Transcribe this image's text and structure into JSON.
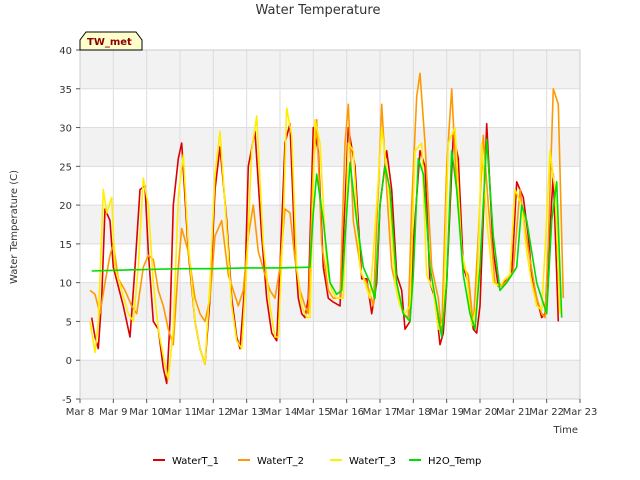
{
  "chart_data": {
    "type": "line",
    "title": "Water Temperature",
    "xlabel": "Time",
    "ylabel": "Water Temperature (C)",
    "tag": "TW_met",
    "ylim": [
      -5,
      40
    ],
    "xlim": [
      8,
      23
    ],
    "y_ticks": [
      -5,
      0,
      5,
      10,
      15,
      20,
      25,
      30,
      35,
      40
    ],
    "x_ticks": [
      {
        "v": 8,
        "label": "Mar 8"
      },
      {
        "v": 9,
        "label": "Mar 9"
      },
      {
        "v": 10,
        "label": "Mar 10"
      },
      {
        "v": 11,
        "label": "Mar 11"
      },
      {
        "v": 12,
        "label": "Mar 12"
      },
      {
        "v": 13,
        "label": "Mar 13"
      },
      {
        "v": 14,
        "label": "Mar 14"
      },
      {
        "v": 15,
        "label": "Mar 15"
      },
      {
        "v": 16,
        "label": "Mar 16"
      },
      {
        "v": 17,
        "label": "Mar 17"
      },
      {
        "v": 18,
        "label": "Mar 18"
      },
      {
        "v": 19,
        "label": "Mar 19"
      },
      {
        "v": 20,
        "label": "Mar 20"
      },
      {
        "v": 21,
        "label": "Mar 21"
      },
      {
        "v": 22,
        "label": "Mar 22"
      },
      {
        "v": 23,
        "label": "Mar 23"
      }
    ],
    "grid": true,
    "legend_position": "bottom",
    "series": [
      {
        "name": "WaterT_1",
        "color": "#dd0000",
        "x": [
          8.35,
          8.45,
          8.55,
          8.65,
          8.75,
          8.9,
          9.0,
          9.15,
          9.3,
          9.5,
          9.65,
          9.8,
          9.95,
          10.05,
          10.2,
          10.35,
          10.5,
          10.6,
          10.7,
          10.8,
          10.95,
          11.05,
          11.25,
          11.45,
          11.6,
          11.75,
          11.9,
          12.05,
          12.2,
          12.4,
          12.55,
          12.7,
          12.8,
          12.95,
          13.05,
          13.25,
          13.45,
          13.6,
          13.75,
          13.9,
          14.0,
          14.15,
          14.3,
          14.45,
          14.55,
          14.65,
          14.75,
          14.85,
          15.0,
          15.15,
          15.3,
          15.45,
          15.6,
          15.8,
          15.95,
          16.05,
          16.25,
          16.45,
          16.6,
          16.75,
          16.9,
          17.0,
          17.2,
          17.35,
          17.5,
          17.65,
          17.75,
          17.9,
          18.0,
          18.2,
          18.35,
          18.5,
          18.65,
          18.8,
          18.9,
          19.0,
          19.2,
          19.35,
          19.5,
          19.65,
          19.8,
          19.9,
          20.0,
          20.2,
          20.4,
          20.55,
          20.7,
          20.85,
          20.95,
          21.1,
          21.3,
          21.45,
          21.55,
          21.7,
          21.85,
          21.95,
          22.05,
          22.2,
          22.35
        ],
        "y": [
          5.5,
          3.0,
          1.5,
          8.0,
          19.5,
          18.0,
          12.0,
          9.5,
          7.0,
          3.0,
          12.0,
          22.0,
          22.5,
          14.0,
          5.0,
          4.0,
          -1.0,
          -3.0,
          5.0,
          20.0,
          26.0,
          28.0,
          14.0,
          5.0,
          1.5,
          -0.5,
          8.0,
          22.0,
          27.5,
          18.0,
          8.0,
          3.0,
          1.5,
          10.0,
          25.0,
          29.5,
          16.0,
          8.0,
          3.5,
          2.5,
          12.0,
          28.0,
          30.5,
          14.0,
          8.0,
          6.0,
          5.5,
          8.0,
          30.0,
          27.0,
          12.0,
          8.0,
          7.5,
          7.0,
          20.0,
          30.0,
          25.0,
          10.5,
          10.5,
          6.0,
          10.0,
          20.0,
          27.0,
          22.0,
          11.0,
          9.0,
          4.0,
          5.0,
          15.0,
          27.0,
          25.0,
          10.0,
          8.0,
          2.0,
          3.5,
          10.0,
          29.0,
          26.0,
          12.0,
          10.0,
          4.0,
          3.5,
          7.0,
          30.5,
          14.0,
          9.5,
          10.0,
          10.5,
          11.0,
          23.0,
          21.0,
          16.0,
          11.0,
          8.0,
          5.5,
          6.0,
          13.0,
          24.0,
          5.0
        ]
      },
      {
        "name": "WaterT_2",
        "color": "#ff9900",
        "x": [
          8.3,
          8.45,
          8.6,
          8.75,
          8.9,
          9.0,
          9.15,
          9.35,
          9.55,
          9.7,
          9.9,
          10.05,
          10.2,
          10.35,
          10.5,
          10.65,
          10.8,
          10.95,
          11.05,
          11.25,
          11.45,
          11.6,
          11.75,
          11.9,
          12.05,
          12.25,
          12.45,
          12.6,
          12.75,
          12.9,
          13.05,
          13.2,
          13.35,
          13.55,
          13.7,
          13.85,
          14.0,
          14.15,
          14.3,
          14.45,
          14.6,
          14.75,
          14.85,
          15.0,
          15.1,
          15.25,
          15.45,
          15.6,
          15.8,
          15.95,
          16.05,
          16.2,
          16.45,
          16.6,
          16.8,
          16.95,
          17.05,
          17.2,
          17.35,
          17.55,
          17.7,
          17.85,
          17.95,
          18.1,
          18.2,
          18.35,
          18.55,
          18.75,
          18.85,
          19.0,
          19.15,
          19.3,
          19.5,
          19.65,
          19.8,
          19.95,
          20.1,
          20.25,
          20.45,
          20.65,
          20.85,
          21.0,
          21.2,
          21.35,
          21.5,
          21.7,
          21.85,
          21.95,
          22.05,
          22.2,
          22.35,
          22.5
        ],
        "y": [
          9.0,
          8.5,
          6.0,
          10.0,
          13.5,
          15.0,
          10.5,
          9.0,
          7.0,
          6.0,
          12.0,
          13.5,
          13.0,
          9.0,
          7.0,
          4.0,
          2.0,
          12.0,
          17.0,
          14.0,
          8.0,
          6.0,
          5.0,
          8.0,
          16.0,
          18.0,
          11.0,
          9.0,
          7.0,
          9.0,
          16.0,
          20.0,
          14.0,
          11.0,
          9.0,
          8.0,
          12.0,
          19.5,
          19.0,
          13.0,
          9.0,
          7.0,
          6.0,
          25.0,
          31.0,
          15.0,
          9.0,
          8.0,
          8.0,
          28.0,
          33.0,
          18.0,
          11.0,
          10.0,
          7.0,
          22.0,
          33.0,
          22.0,
          12.0,
          8.0,
          6.0,
          5.5,
          20.0,
          34.0,
          37.0,
          28.0,
          12.0,
          8.0,
          3.5,
          25.0,
          35.0,
          22.0,
          12.0,
          11.0,
          4.5,
          16.0,
          29.0,
          20.0,
          10.0,
          9.5,
          10.5,
          11.5,
          22.0,
          17.0,
          13.0,
          8.0,
          6.0,
          5.5,
          15.0,
          35.0,
          33.0,
          8.0
        ]
      },
      {
        "name": "WaterT_3",
        "color": "#ffee00",
        "x": [
          8.3,
          8.45,
          8.55,
          8.7,
          8.8,
          8.95,
          9.05,
          9.25,
          9.45,
          9.6,
          9.75,
          9.9,
          10.05,
          10.2,
          10.35,
          10.5,
          10.65,
          10.8,
          10.95,
          11.1,
          11.25,
          11.45,
          11.6,
          11.75,
          11.9,
          12.05,
          12.2,
          12.4,
          12.55,
          12.7,
          12.85,
          13.0,
          13.15,
          13.3,
          13.5,
          13.7,
          13.85,
          13.95,
          14.1,
          14.2,
          14.35,
          14.5,
          14.65,
          14.8,
          14.9,
          15.05,
          15.2,
          15.4,
          15.55,
          15.7,
          15.9,
          16.05,
          16.2,
          16.4,
          16.55,
          16.7,
          16.9,
          17.05,
          17.25,
          17.45,
          17.6,
          17.75,
          17.9,
          18.05,
          18.25,
          18.4,
          18.6,
          18.75,
          18.9,
          19.05,
          19.25,
          19.45,
          19.6,
          19.75,
          19.9,
          20.05,
          20.2,
          20.4,
          20.6,
          20.75,
          20.9,
          21.05,
          21.25,
          21.4,
          21.55,
          21.7,
          21.85,
          21.95,
          22.1,
          22.25,
          22.4
        ],
        "y": [
          5.0,
          1.0,
          5.0,
          22.0,
          19.0,
          21.0,
          12.0,
          9.0,
          6.0,
          5.0,
          12.0,
          23.5,
          20.0,
          10.0,
          4.0,
          0.5,
          -2.5,
          4.0,
          21.0,
          26.5,
          15.0,
          5.0,
          1.5,
          -0.5,
          10.0,
          24.0,
          29.5,
          17.0,
          7.0,
          2.5,
          1.5,
          12.0,
          27.0,
          31.5,
          15.0,
          7.0,
          3.0,
          3.0,
          18.0,
          32.5,
          29.0,
          12.0,
          7.0,
          5.5,
          5.5,
          31.0,
          28.0,
          12.0,
          9.0,
          8.0,
          8.0,
          28.0,
          27.0,
          12.0,
          10.0,
          8.0,
          20.0,
          30.0,
          23.0,
          10.0,
          7.0,
          6.0,
          7.0,
          27.0,
          28.0,
          11.0,
          9.0,
          4.0,
          5.0,
          28.0,
          30.0,
          14.0,
          11.0,
          4.5,
          7.0,
          28.0,
          18.0,
          10.0,
          9.5,
          10.5,
          11.0,
          22.0,
          20.0,
          14.0,
          10.0,
          7.0,
          6.5,
          14.0,
          27.0,
          22.0,
          6.0
        ]
      },
      {
        "name": "H2O_Temp",
        "color": "#00dd00",
        "x": [
          8.35,
          9.0,
          10.0,
          11.0,
          12.0,
          13.0,
          14.0,
          14.9,
          15.0,
          15.1,
          15.3,
          15.5,
          15.7,
          15.85,
          16.0,
          16.1,
          16.3,
          16.5,
          16.7,
          16.85,
          17.0,
          17.15,
          17.3,
          17.5,
          17.7,
          17.9,
          18.0,
          18.15,
          18.3,
          18.5,
          18.7,
          18.85,
          19.0,
          19.15,
          19.3,
          19.5,
          19.7,
          19.85,
          20.0,
          20.2,
          20.4,
          20.6,
          20.8,
          20.95,
          21.1,
          21.25,
          21.4,
          21.55,
          21.7,
          21.85,
          22.0,
          22.15,
          22.3,
          22.45
        ],
        "y": [
          11.5,
          11.6,
          11.7,
          11.8,
          11.8,
          11.9,
          11.9,
          12.0,
          19.0,
          24.0,
          18.0,
          10.0,
          8.5,
          9.0,
          19.0,
          25.5,
          18.0,
          12.0,
          10.0,
          8.0,
          20.0,
          25.0,
          22.0,
          10.0,
          6.0,
          5.0,
          11.0,
          26.0,
          24.0,
          12.0,
          7.0,
          3.0,
          10.0,
          27.0,
          22.0,
          11.0,
          6.0,
          4.0,
          12.0,
          28.5,
          16.0,
          9.0,
          10.0,
          11.0,
          12.0,
          20.0,
          18.0,
          14.0,
          10.0,
          8.0,
          6.0,
          18.0,
          23.0,
          5.5
        ]
      }
    ]
  }
}
